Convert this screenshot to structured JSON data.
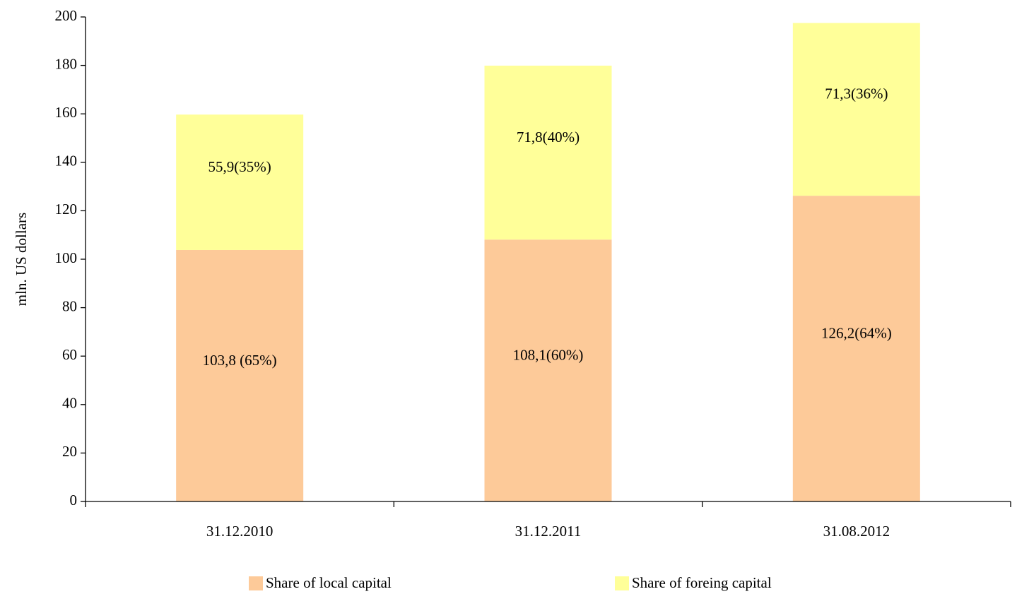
{
  "chart_data": {
    "type": "stacked_bar",
    "ylabel": "mln. US dollars",
    "categories": [
      "31.12.2010",
      "31.12.2011",
      "31.08.2012"
    ],
    "series": [
      {
        "name": "Share of local capital",
        "color": "#fdca99",
        "values": [
          103.8,
          108.1,
          126.2
        ],
        "value_labels": [
          "103,8 (65%)",
          "108,1(60%)",
          "126,2(64%)"
        ]
      },
      {
        "name": "Share of foreing capital",
        "color": "#ffff99",
        "values": [
          55.9,
          71.8,
          71.3
        ],
        "value_labels": [
          "55,9(35%)",
          "71,8(40%)",
          "71,3(36%)"
        ]
      }
    ],
    "ylim": [
      0,
      200
    ],
    "yticks": [
      0,
      20,
      40,
      60,
      80,
      100,
      120,
      140,
      160,
      180,
      200
    ],
    "legend": "bottom"
  }
}
